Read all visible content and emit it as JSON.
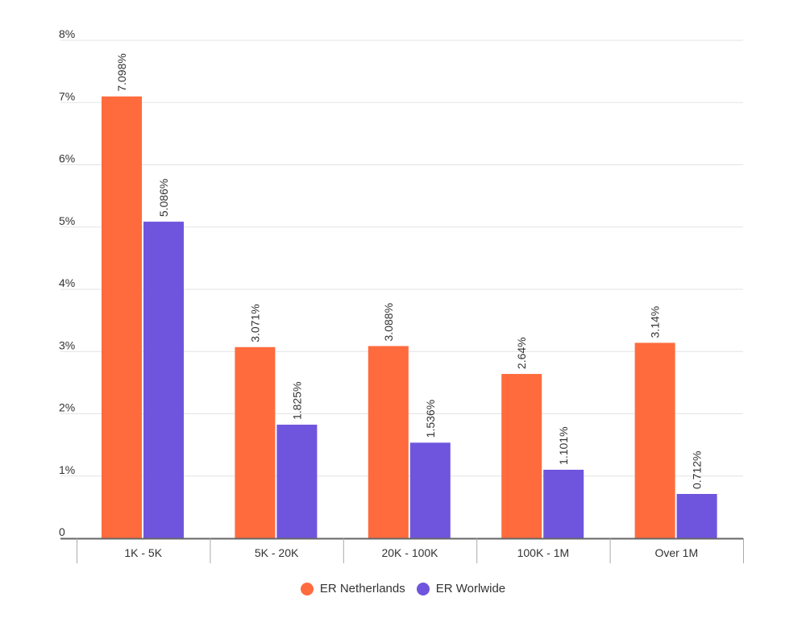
{
  "chart_data": {
    "type": "bar",
    "categories": [
      "1K - 5K",
      "5K - 20K",
      "20K - 100K",
      "100K - 1M",
      "Over 1M"
    ],
    "series": [
      {
        "name": "ER Netherlands",
        "color": "#FF6B3D",
        "values": [
          7.098,
          3.071,
          3.088,
          2.64,
          3.14
        ],
        "labels": [
          "7.098%",
          "3.071%",
          "3.088%",
          "2.64%",
          "3.14%"
        ]
      },
      {
        "name": "ER Worlwide",
        "color": "#6F55DD",
        "values": [
          5.086,
          1.825,
          1.536,
          1.101,
          0.712
        ],
        "labels": [
          "5.086%",
          "1.825%",
          "1.536%",
          "1.101%",
          "0.712%"
        ]
      }
    ],
    "yticks": [
      {
        "value": 0,
        "label": "0"
      },
      {
        "value": 1,
        "label": "1%"
      },
      {
        "value": 2,
        "label": "2%"
      },
      {
        "value": 3,
        "label": "3%"
      },
      {
        "value": 4,
        "label": "4%"
      },
      {
        "value": 5,
        "label": "5%"
      },
      {
        "value": 6,
        "label": "6%"
      },
      {
        "value": 7,
        "label": "7%"
      },
      {
        "value": 8,
        "label": "8%"
      }
    ],
    "ylim": [
      0,
      8
    ],
    "grid": true,
    "legend_position": "bottom-center",
    "title": "",
    "xlabel": "",
    "ylabel": ""
  }
}
